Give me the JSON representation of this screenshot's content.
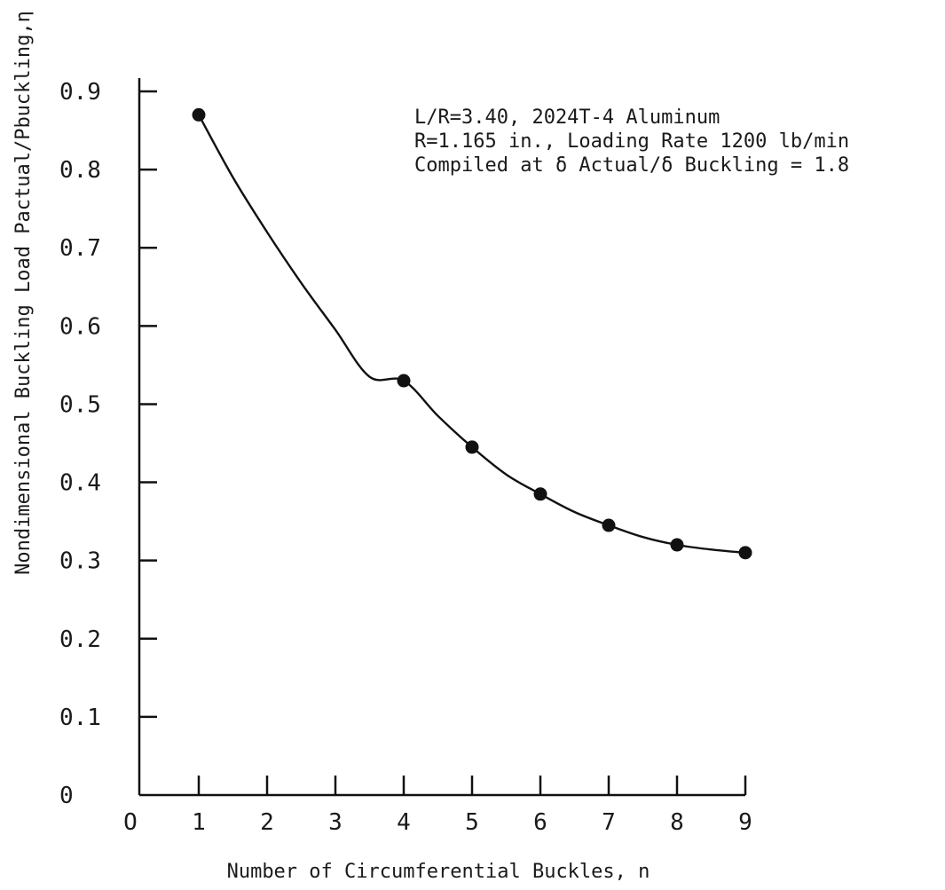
{
  "chart_data": {
    "type": "scatter",
    "xlabel": "Number of Circumferential Buckles, n",
    "ylabel": "Nondimensional Buckling Load  Pactual/Pbuckling,η",
    "xlim": [
      0,
      9
    ],
    "ylim": [
      0,
      0.9
    ],
    "x_ticks": [
      "O",
      "1",
      "2",
      "3",
      "4",
      "5",
      "6",
      "7",
      "8",
      "9"
    ],
    "y_ticks": [
      "0",
      "0.1",
      "0.2",
      "0.3",
      "0.4",
      "0.5",
      "0.6",
      "0.7",
      "0.8",
      "0.9"
    ],
    "grid": false,
    "annotations": [
      "L/R=3.40, 2024T-4 Aluminum",
      "R=1.165 in., Loading Rate 1200 lb/min",
      "Compiled at δ Actual/δ Buckling = 1.8"
    ],
    "series": [
      {
        "points": {
          "x": [
            1,
            4,
            5,
            6,
            7,
            8,
            9
          ],
          "y": [
            0.87,
            0.53,
            0.445,
            0.385,
            0.345,
            0.32,
            0.31
          ]
        },
        "curve": {
          "x": [
            1,
            1.5,
            2,
            2.5,
            3,
            3.5,
            4,
            4.5,
            5,
            5.5,
            6,
            6.5,
            7,
            7.5,
            8,
            8.5,
            9
          ],
          "y": [
            0.87,
            0.79,
            0.72,
            0.655,
            0.595,
            0.535,
            0.53,
            0.485,
            0.445,
            0.41,
            0.385,
            0.362,
            0.345,
            0.33,
            0.32,
            0.314,
            0.31
          ]
        }
      }
    ]
  }
}
